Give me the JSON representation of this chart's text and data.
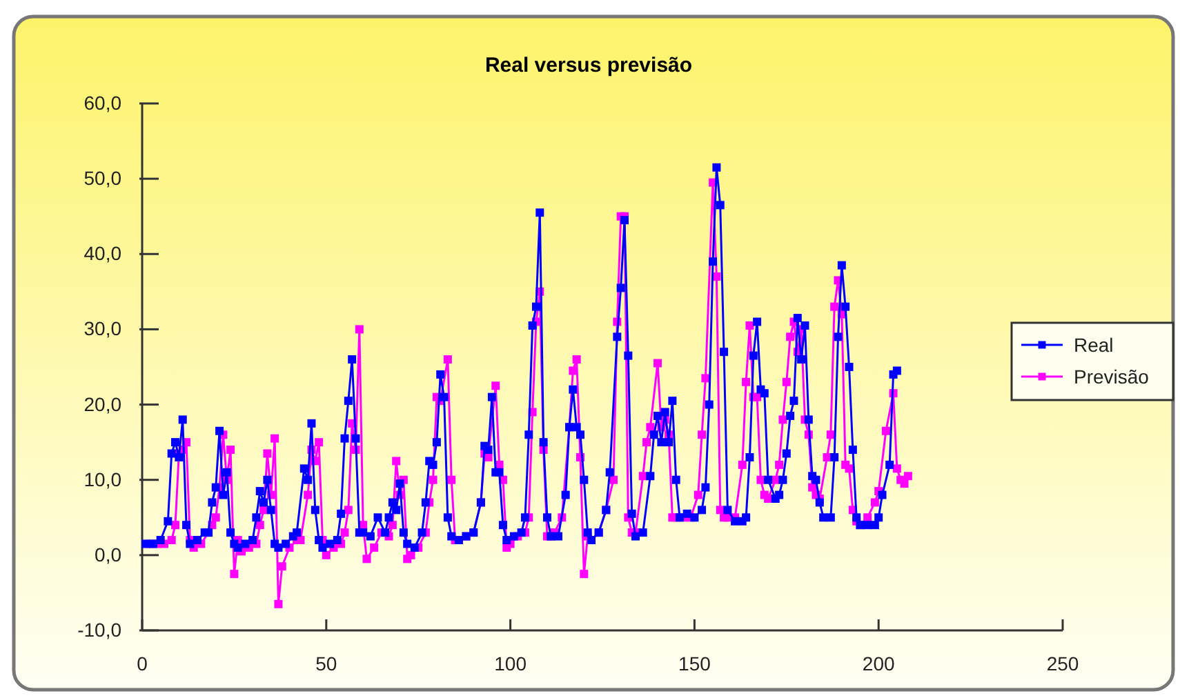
{
  "chart_data": {
    "type": "line",
    "title": "Real versus previsão",
    "marker": "square",
    "line_style": "solid",
    "legend": "right",
    "grid": false,
    "xlim": [
      0,
      250
    ],
    "xticks": [
      0,
      50,
      100,
      150,
      200,
      250
    ],
    "ylim": [
      -10,
      60
    ],
    "yticks": [
      {
        "value": -10,
        "label": "-10,0"
      },
      {
        "value": 0,
        "label": "0,0"
      },
      {
        "value": 10,
        "label": "10,0"
      },
      {
        "value": 20,
        "label": "20,0"
      },
      {
        "value": 30,
        "label": "30,0"
      },
      {
        "value": 40,
        "label": "40,0"
      },
      {
        "value": 50,
        "label": "50,0"
      },
      {
        "value": 60,
        "label": "60,0"
      }
    ],
    "series": [
      {
        "name": "Real",
        "color": "#0000ff",
        "x": [
          1,
          3,
          5,
          7,
          8,
          9,
          10,
          11,
          12,
          13,
          15,
          17,
          18,
          19,
          20,
          21,
          22,
          23,
          24,
          25,
          26,
          28,
          30,
          31,
          32,
          33,
          34,
          35,
          36,
          37,
          39,
          41,
          42,
          44,
          45,
          46,
          47,
          48,
          49,
          51,
          53,
          54,
          55,
          56,
          57,
          58,
          59,
          60,
          62,
          64,
          66,
          67,
          68,
          69,
          70,
          71,
          72,
          74,
          76,
          77,
          78,
          79,
          80,
          81,
          82,
          83,
          84,
          86,
          88,
          90,
          92,
          93,
          94,
          95,
          96,
          97,
          98,
          99,
          101,
          103,
          104,
          105,
          106,
          107,
          108,
          109,
          110,
          111,
          113,
          115,
          116,
          117,
          118,
          119,
          120,
          121,
          122,
          124,
          126,
          127,
          129,
          130,
          131,
          132,
          133,
          134,
          136,
          138,
          139,
          140,
          141,
          142,
          143,
          144,
          145,
          146,
          148,
          150,
          152,
          153,
          154,
          155,
          156,
          157,
          158,
          159,
          161,
          163,
          164,
          165,
          166,
          167,
          168,
          169,
          170,
          172,
          173,
          174,
          175,
          176,
          177,
          178,
          179,
          180,
          181,
          182,
          183,
          184,
          185,
          187,
          188,
          189,
          190,
          191,
          192,
          193,
          194,
          195,
          197,
          199,
          200,
          201,
          203,
          204,
          205
        ],
        "values": [
          1.5,
          1.5,
          2,
          4.5,
          13.5,
          15,
          13,
          18,
          4,
          1.5,
          2,
          3,
          3,
          7,
          9,
          16.5,
          8,
          11,
          3,
          1.5,
          1,
          1.5,
          2,
          5,
          8.5,
          7,
          10,
          6,
          1.5,
          1,
          1.5,
          2.5,
          3,
          11.5,
          10,
          17.5,
          6,
          2,
          1,
          1.5,
          2,
          5.5,
          15.5,
          20.5,
          26,
          15.5,
          3,
          3,
          2.5,
          5,
          3,
          5,
          7,
          6,
          9.5,
          3,
          1.5,
          1,
          3,
          7,
          12.5,
          12,
          15,
          24,
          21,
          5,
          2.5,
          2,
          2.5,
          3,
          7,
          14.5,
          14,
          21,
          11,
          11,
          4,
          2,
          2.5,
          3,
          5,
          16,
          30.5,
          33,
          45.5,
          15,
          5,
          2.5,
          2.5,
          8,
          17,
          22,
          17,
          16,
          10,
          3,
          2,
          3,
          6,
          11,
          29,
          35.5,
          44.5,
          26.5,
          5.5,
          2.5,
          3,
          10.5,
          16,
          18.5,
          15,
          19,
          15,
          20.5,
          10,
          5,
          5.5,
          5,
          6,
          9,
          20,
          39,
          51.5,
          46.5,
          27,
          6,
          4.5,
          4.5,
          5,
          13,
          26.5,
          31,
          22,
          21.5,
          10,
          7.5,
          8,
          10,
          13.5,
          18.5,
          20.5,
          31.5,
          26,
          30.5,
          18,
          10.5,
          10,
          7,
          5,
          5,
          13,
          29,
          38.5,
          33,
          25,
          14,
          5,
          4,
          4,
          4,
          5,
          8,
          12,
          24,
          24.5
        ]
      },
      {
        "name": "Previsão",
        "color": "#ff00ff",
        "x": [
          2,
          4,
          6,
          8,
          9,
          10,
          11,
          12,
          13,
          14,
          16,
          18,
          19,
          20,
          21,
          22,
          23,
          24,
          25,
          26,
          27,
          29,
          31,
          32,
          33,
          34,
          35,
          36,
          37,
          38,
          40,
          42,
          43,
          45,
          46,
          47,
          48,
          49,
          50,
          52,
          54,
          55,
          56,
          57,
          58,
          59,
          60,
          61,
          63,
          65,
          67,
          68,
          69,
          70,
          71,
          72,
          73,
          75,
          77,
          78,
          79,
          80,
          81,
          83,
          84,
          85,
          86,
          88,
          90,
          92,
          93,
          94,
          96,
          97,
          98,
          99,
          100,
          102,
          104,
          105,
          106,
          107,
          108,
          109,
          110,
          111,
          112,
          114,
          116,
          117,
          118,
          119,
          120,
          121,
          122,
          124,
          126,
          128,
          129,
          130,
          131,
          132,
          133,
          134,
          136,
          137,
          138,
          140,
          141,
          142,
          143,
          144,
          145,
          147,
          149,
          151,
          152,
          153,
          155,
          156,
          157,
          158,
          159,
          161,
          163,
          164,
          165,
          166,
          167,
          168,
          169,
          170,
          172,
          173,
          174,
          175,
          176,
          177,
          178,
          179,
          180,
          181,
          182,
          183,
          184,
          186,
          187,
          188,
          189,
          190,
          191,
          192,
          193,
          194,
          195,
          197,
          199,
          200,
          202,
          204,
          205,
          206,
          207,
          208
        ],
        "values": [
          1.5,
          1.5,
          1.5,
          2,
          4,
          13.5,
          14,
          15,
          2,
          1,
          1.5,
          3,
          4,
          5,
          9,
          16,
          10,
          14,
          -2.5,
          2,
          0.5,
          1,
          1.5,
          4,
          6,
          13.5,
          8,
          15.5,
          -6.5,
          -1.5,
          1,
          2,
          2,
          8,
          14,
          12.5,
          15,
          2,
          0,
          1,
          1.5,
          3,
          6,
          17.5,
          14,
          30,
          4,
          -0.5,
          1,
          3,
          2.5,
          4,
          12.5,
          8,
          10,
          -0.5,
          0,
          1,
          3,
          7,
          10,
          21,
          20.5,
          26,
          10,
          2,
          2,
          2.5,
          3,
          7,
          13.5,
          13,
          22.5,
          12,
          10,
          1,
          1.5,
          2.5,
          3,
          5,
          19,
          31,
          35,
          14,
          2.5,
          2.5,
          3,
          5,
          17,
          24.5,
          26,
          13,
          -2.5,
          2.5,
          2,
          3,
          6,
          10,
          31,
          45,
          45,
          5,
          3,
          3,
          10.5,
          15,
          17,
          25.5,
          17,
          18,
          16,
          5,
          5,
          5,
          5,
          8,
          16,
          23.5,
          49.5,
          37,
          6,
          5,
          5,
          5,
          12,
          23,
          30.5,
          21,
          21,
          10,
          8,
          7.5,
          10,
          12,
          18,
          23,
          29,
          31,
          27,
          30,
          18,
          16,
          9,
          8,
          7.5,
          13,
          16,
          33,
          36.5,
          32,
          12,
          11.5,
          6,
          4.5,
          4,
          5,
          7,
          8.5,
          16.5,
          21.5,
          11.5,
          10,
          9.5,
          10.5
        ]
      }
    ]
  }
}
